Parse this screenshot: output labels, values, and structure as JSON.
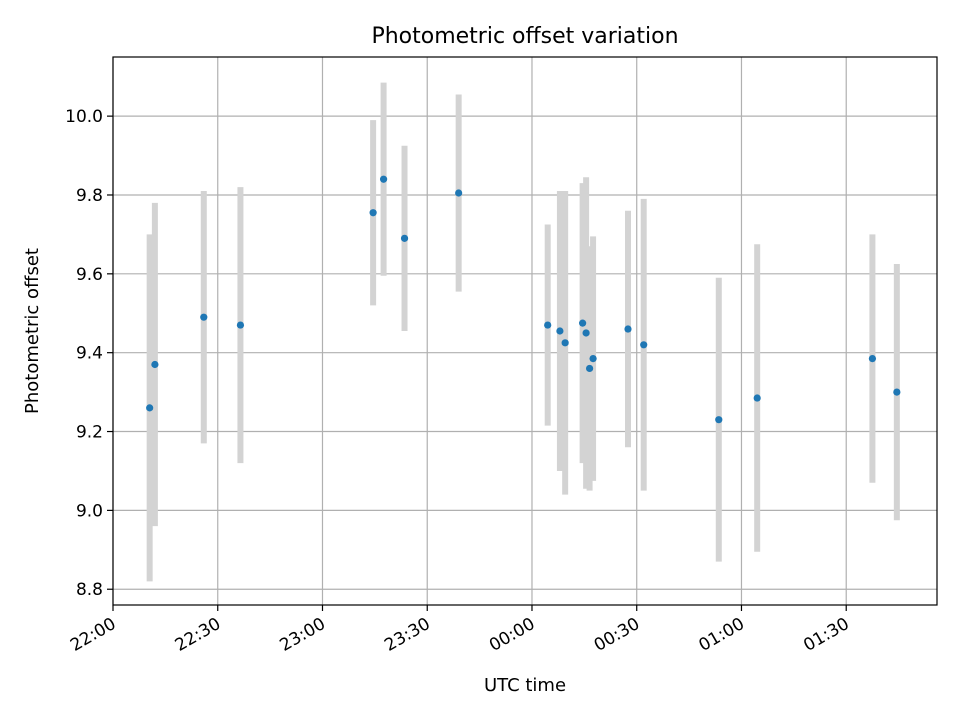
{
  "chart_data": {
    "type": "scatter",
    "title": "Photometric offset variation",
    "xlabel": "UTC time",
    "ylabel": "Photometric offset",
    "x_ticks": [
      "22:00",
      "22:30",
      "23:00",
      "23:30",
      "00:00",
      "00:30",
      "01:00",
      "01:30"
    ],
    "x_tick_minutes": [
      0,
      30,
      60,
      90,
      120,
      150,
      180,
      210
    ],
    "y_ticks": [
      "8.8",
      "9.0",
      "9.2",
      "9.4",
      "9.6",
      "9.8",
      "10.0"
    ],
    "xlim_minutes": [
      0,
      236
    ],
    "ylim": [
      8.76,
      10.15
    ],
    "grid": true,
    "colors": {
      "point": "#1f77b4",
      "errorbar": "#d3d3d3",
      "grid": "#b0b0b0"
    },
    "points": [
      {
        "t": "22:10:30",
        "y": 9.26,
        "err": 0.44
      },
      {
        "t": "22:12:00",
        "y": 9.37,
        "err": 0.41
      },
      {
        "t": "22:26:00",
        "y": 9.49,
        "err": 0.32
      },
      {
        "t": "22:36:30",
        "y": 9.47,
        "err": 0.35
      },
      {
        "t": "23:14:30",
        "y": 9.755,
        "err": 0.235
      },
      {
        "t": "23:17:30",
        "y": 9.84,
        "err": 0.245
      },
      {
        "t": "23:23:30",
        "y": 9.69,
        "err": 0.235
      },
      {
        "t": "23:39:00",
        "y": 9.805,
        "err": 0.25
      },
      {
        "t": "00:04:30",
        "y": 9.47,
        "err": 0.255
      },
      {
        "t": "00:08:00",
        "y": 9.455,
        "err": 0.355
      },
      {
        "t": "00:09:30",
        "y": 9.425,
        "err": 0.385
      },
      {
        "t": "00:14:30",
        "y": 9.475,
        "err": 0.355
      },
      {
        "t": "00:15:30",
        "y": 9.45,
        "err": 0.395
      },
      {
        "t": "00:16:30",
        "y": 9.36,
        "err": 0.31
      },
      {
        "t": "00:17:30",
        "y": 9.385,
        "err": 0.31
      },
      {
        "t": "00:27:30",
        "y": 9.46,
        "err": 0.3
      },
      {
        "t": "00:32:00",
        "y": 9.42,
        "err": 0.37
      },
      {
        "t": "00:53:30",
        "y": 9.23,
        "err": 0.36
      },
      {
        "t": "01:04:30",
        "y": 9.285,
        "err": 0.39
      },
      {
        "t": "01:37:30",
        "y": 9.385,
        "err": 0.315
      },
      {
        "t": "01:44:30",
        "y": 9.3,
        "err": 0.325
      }
    ]
  }
}
